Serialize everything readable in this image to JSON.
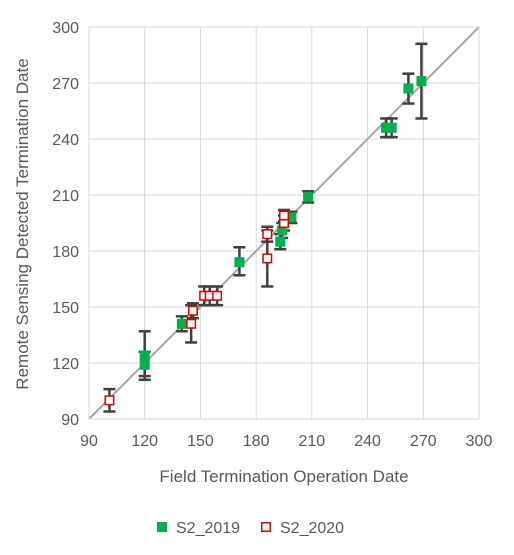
{
  "chart_data": {
    "type": "scatter",
    "title": "",
    "xlabel": "Field Termination Operation Date",
    "ylabel": "Remote Sensing Detected Termination Date",
    "xlim": [
      90,
      300
    ],
    "ylim": [
      90,
      300
    ],
    "xticks": [
      90,
      120,
      150,
      180,
      210,
      240,
      270,
      300
    ],
    "yticks": [
      90,
      120,
      150,
      180,
      210,
      240,
      270,
      300
    ],
    "grid": true,
    "reference_line": "1:1",
    "legend_position": "bottom",
    "series": [
      {
        "name": "S2_2019",
        "marker": "filled-square",
        "color": "#00b050",
        "points": [
          {
            "x": 120,
            "y": 124,
            "err_low": 113,
            "err_high": 137
          },
          {
            "x": 120,
            "y": 119,
            "err_low": 111,
            "err_high": 126
          },
          {
            "x": 140,
            "y": 141,
            "err_low": 137,
            "err_high": 145
          },
          {
            "x": 171,
            "y": 174,
            "err_low": 167,
            "err_high": 182
          },
          {
            "x": 193,
            "y": 185,
            "err_low": 181,
            "err_high": 189
          },
          {
            "x": 194,
            "y": 191,
            "err_low": 187,
            "err_high": 195
          },
          {
            "x": 199,
            "y": 198,
            "err_low": 195,
            "err_high": 201
          },
          {
            "x": 208,
            "y": 209,
            "err_low": 206,
            "err_high": 212
          },
          {
            "x": 250,
            "y": 246,
            "err_low": 241,
            "err_high": 251
          },
          {
            "x": 253,
            "y": 246,
            "err_low": 241,
            "err_high": 251
          },
          {
            "x": 262,
            "y": 267,
            "err_low": 259,
            "err_high": 275
          },
          {
            "x": 269,
            "y": 271,
            "err_low": 251,
            "err_high": 291
          }
        ]
      },
      {
        "name": "S2_2020",
        "marker": "open-square",
        "color": "#e00000",
        "points": [
          {
            "x": 101,
            "y": 100,
            "err_low": 94,
            "err_high": 106
          },
          {
            "x": 145,
            "y": 141,
            "err_low": 131,
            "err_high": 151
          },
          {
            "x": 146,
            "y": 148,
            "err_low": 144,
            "err_high": 152
          },
          {
            "x": 152,
            "y": 156,
            "err_low": 151,
            "err_high": 161
          },
          {
            "x": 155,
            "y": 156,
            "err_low": 151,
            "err_high": 161
          },
          {
            "x": 159,
            "y": 156,
            "err_low": 151,
            "err_high": 161
          },
          {
            "x": 186,
            "y": 176,
            "err_low": 161,
            "err_high": 191
          },
          {
            "x": 186,
            "y": 189,
            "err_low": 185,
            "err_high": 193
          },
          {
            "x": 195,
            "y": 195,
            "err_low": 191,
            "err_high": 199
          },
          {
            "x": 195,
            "y": 199,
            "err_low": 196,
            "err_high": 202
          }
        ]
      }
    ]
  }
}
